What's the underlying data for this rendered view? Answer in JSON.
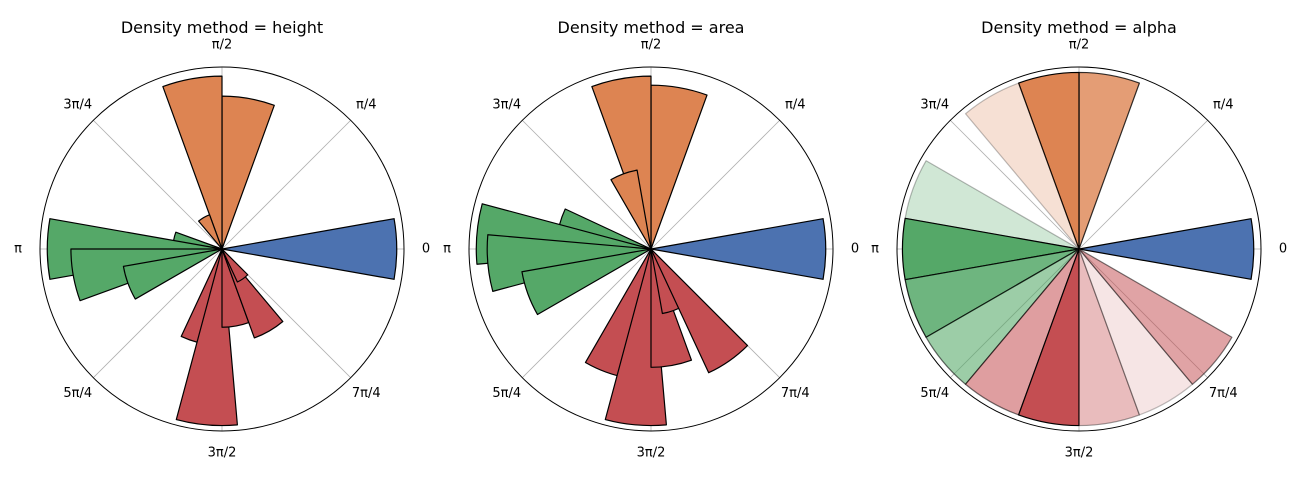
{
  "chart_data": [
    {
      "type": "polar_histogram",
      "title": "Density method = height",
      "theta_ticks": [
        "0",
        "π/4",
        "π/2",
        "3π/4",
        "π",
        "5π/4",
        "3π/2",
        "7π/4"
      ],
      "grid": true,
      "rmax": 1.0,
      "groups": [
        {
          "color": "#4c72b0",
          "bars": [
            {
              "theta_deg": 0,
              "r": 0.96,
              "alpha": 1
            }
          ]
        },
        {
          "color": "#dd8452",
          "bars": [
            {
              "theta_deg": 80,
              "r": 0.84,
              "alpha": 1
            },
            {
              "theta_deg": 100,
              "r": 0.95,
              "alpha": 1
            },
            {
              "theta_deg": 120,
              "r": 0.2,
              "alpha": 1
            }
          ]
        },
        {
          "color": "#55a868",
          "bars": [
            {
              "theta_deg": 170,
              "r": 0.27,
              "alpha": 1
            },
            {
              "theta_deg": 180,
              "r": 0.96,
              "alpha": 1
            },
            {
              "theta_deg": 190,
              "r": 0.83,
              "alpha": 1
            },
            {
              "theta_deg": 200,
              "r": 0.55,
              "alpha": 1
            }
          ]
        },
        {
          "color": "#c44e52",
          "bars": [
            {
              "theta_deg": 255,
              "r": 0.53,
              "alpha": 1
            },
            {
              "theta_deg": 265,
              "r": 0.97,
              "alpha": 1
            },
            {
              "theta_deg": 280,
              "r": 0.43,
              "alpha": 1
            },
            {
              "theta_deg": 300,
              "r": 0.52,
              "alpha": 1
            },
            {
              "theta_deg": 305,
              "r": 0.2,
              "alpha": 1
            }
          ]
        }
      ]
    },
    {
      "type": "polar_histogram",
      "title": "Density method = area",
      "theta_ticks": [
        "0",
        "π/4",
        "π/2",
        "3π/4",
        "π",
        "5π/4",
        "3π/2",
        "7π/4"
      ],
      "grid": true,
      "rmax": 1.0,
      "groups": [
        {
          "color": "#4c72b0",
          "bars": [
            {
              "theta_deg": 0,
              "r": 0.96,
              "alpha": 1
            }
          ]
        },
        {
          "color": "#dd8452",
          "bars": [
            {
              "theta_deg": 80,
              "r": 0.9,
              "alpha": 1
            },
            {
              "theta_deg": 100,
              "r": 0.95,
              "alpha": 1
            },
            {
              "theta_deg": 110,
              "r": 0.44,
              "alpha": 1
            }
          ]
        },
        {
          "color": "#55a868",
          "bars": [
            {
              "theta_deg": 165,
              "r": 0.52,
              "alpha": 1
            },
            {
              "theta_deg": 175,
              "r": 0.96,
              "alpha": 1
            },
            {
              "theta_deg": 185,
              "r": 0.9,
              "alpha": 1
            },
            {
              "theta_deg": 200,
              "r": 0.72,
              "alpha": 1
            }
          ]
        },
        {
          "color": "#c44e52",
          "bars": [
            {
              "theta_deg": 250,
              "r": 0.72,
              "alpha": 1
            },
            {
              "theta_deg": 265,
              "r": 0.97,
              "alpha": 1
            },
            {
              "theta_deg": 280,
              "r": 0.65,
              "alpha": 1
            },
            {
              "theta_deg": 290,
              "r": 0.36,
              "alpha": 1
            },
            {
              "theta_deg": 305,
              "r": 0.75,
              "alpha": 1
            }
          ]
        }
      ]
    },
    {
      "type": "polar_histogram",
      "title": "Density method = alpha",
      "theta_ticks": [
        "0",
        "π/4",
        "π/2",
        "3π/4",
        "π",
        "5π/4",
        "3π/2",
        "7π/4"
      ],
      "grid": true,
      "rmax": 1.0,
      "groups": [
        {
          "color": "#4c72b0",
          "bars": [
            {
              "theta_deg": 0,
              "r": 0.96,
              "alpha": 1
            }
          ]
        },
        {
          "color": "#dd8452",
          "bars": [
            {
              "theta_deg": 80,
              "r": 0.97,
              "alpha": 0.8
            },
            {
              "theta_deg": 100,
              "r": 0.97,
              "alpha": 1
            },
            {
              "theta_deg": 120,
              "r": 0.97,
              "alpha": 0.25
            }
          ]
        },
        {
          "color": "#55a868",
          "bars": [
            {
              "theta_deg": 160,
              "r": 0.97,
              "alpha": 0.28
            },
            {
              "theta_deg": 180,
              "r": 0.97,
              "alpha": 1
            },
            {
              "theta_deg": 200,
              "r": 0.97,
              "alpha": 0.85
            },
            {
              "theta_deg": 220,
              "r": 0.97,
              "alpha": 0.58
            }
          ]
        },
        {
          "color": "#c44e52",
          "bars": [
            {
              "theta_deg": 240,
              "r": 0.97,
              "alpha": 0.55
            },
            {
              "theta_deg": 260,
              "r": 0.97,
              "alpha": 1
            },
            {
              "theta_deg": 280,
              "r": 0.97,
              "alpha": 0.38
            },
            {
              "theta_deg": 300,
              "r": 0.97,
              "alpha": 0.15
            },
            {
              "theta_deg": 320,
              "r": 0.97,
              "alpha": 0.52
            }
          ]
        }
      ]
    }
  ]
}
